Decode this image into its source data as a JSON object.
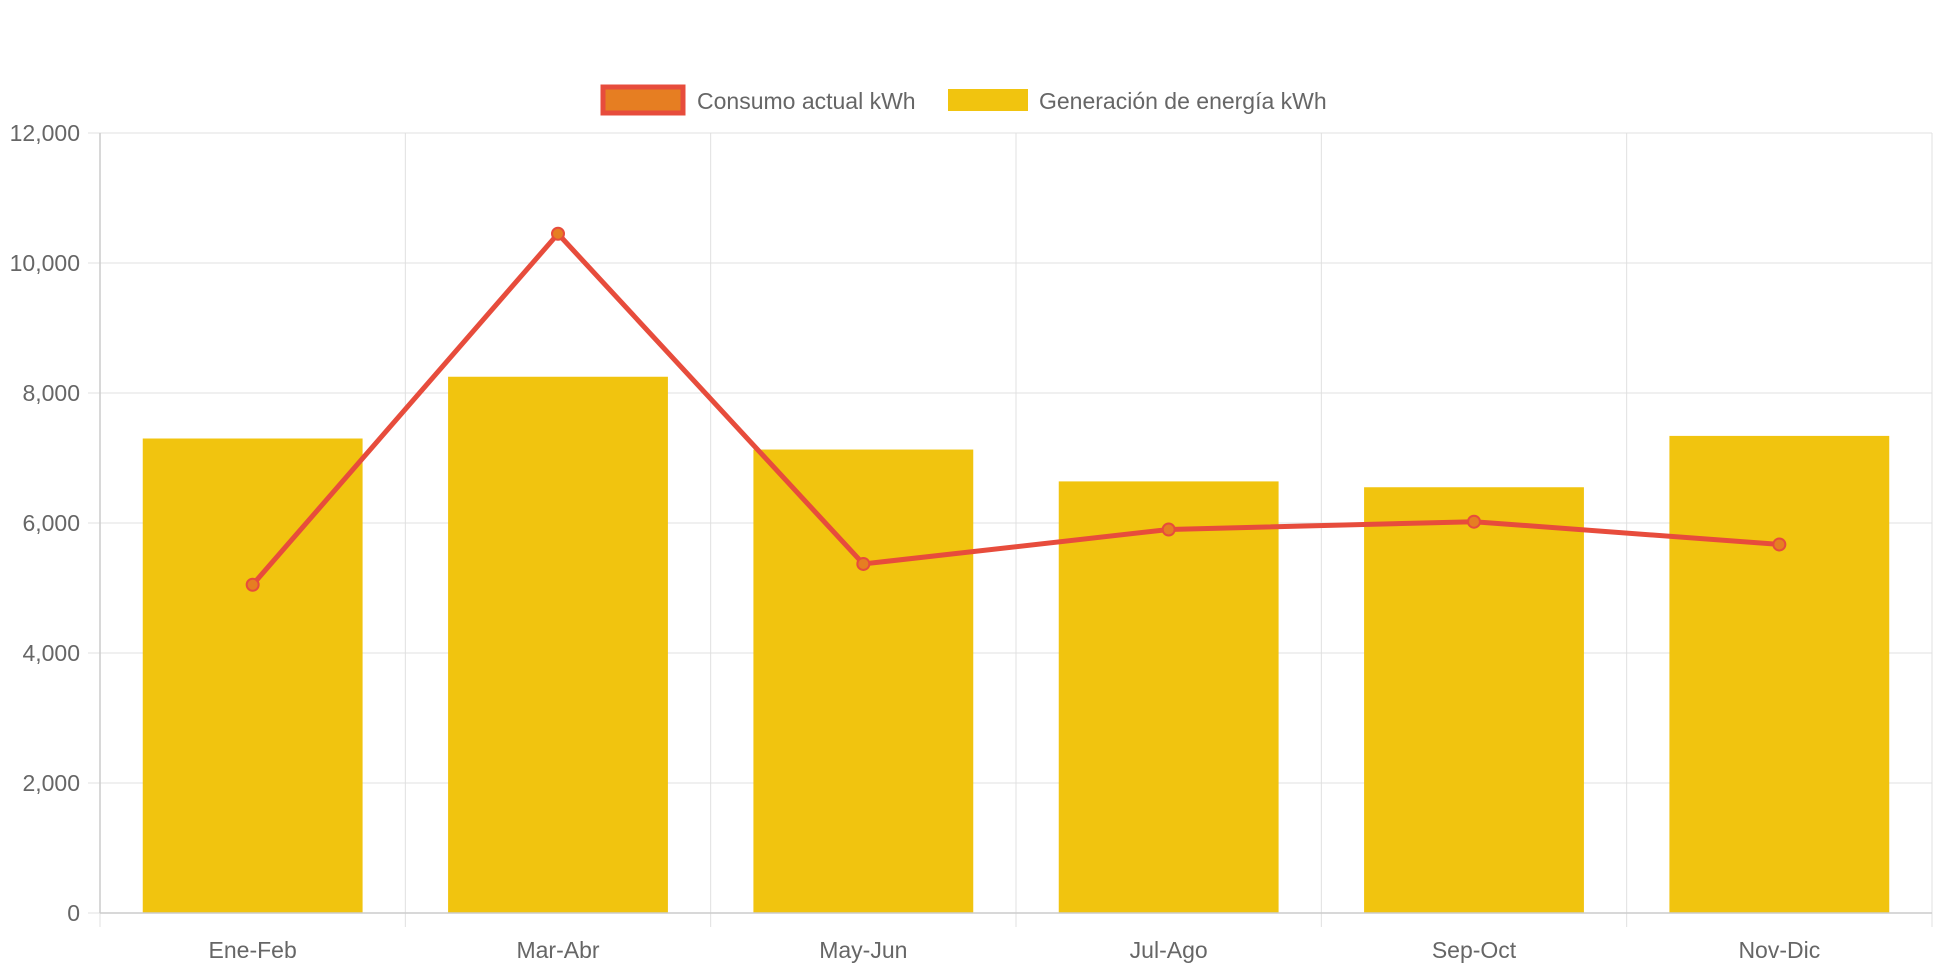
{
  "chart_data": {
    "type": "bar",
    "categories": [
      "Ene-Feb",
      "Mar-Abr",
      "May-Jun",
      "Jul-Ago",
      "Sep-Oct",
      "Nov-Dic"
    ],
    "series": [
      {
        "name": "Consumo actual kWh",
        "type": "line",
        "values": [
          5050,
          10450,
          5370,
          5900,
          6020,
          5670
        ],
        "color": "#e74c3c",
        "point_fill": "#e67e22"
      },
      {
        "name": "Generación de energía kWh",
        "type": "bar",
        "values": [
          7300,
          8250,
          7130,
          6640,
          6550,
          7340
        ],
        "color": "#f1c40f"
      }
    ],
    "ylim": [
      0,
      12000
    ],
    "yticks": [
      "0",
      "2,000",
      "4,000",
      "6,000",
      "8,000",
      "10,000",
      "12,000"
    ],
    "grid": true,
    "legend_position": "top"
  },
  "colors": {
    "grid": "#e0e0e0",
    "axis": "#cccccc",
    "text": "#666666"
  }
}
